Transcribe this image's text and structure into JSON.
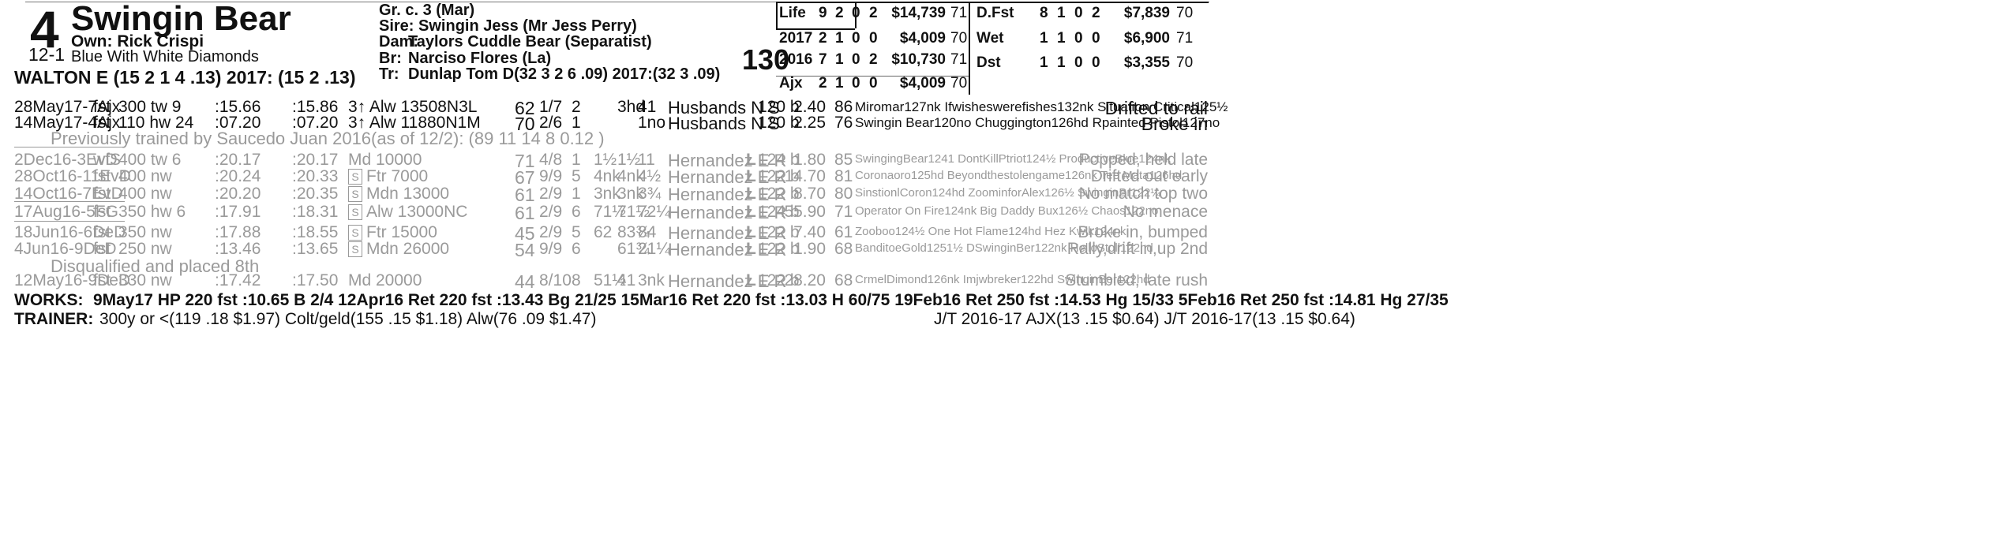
{
  "horse": {
    "program_number": "4",
    "name": "Swingin Bear",
    "odds": "12-1",
    "owner": "Own: Rick Crispi",
    "silks": "Blue With White Diamonds",
    "jockey_line": "WALTON E (15 2 1 4 .13) 2017: (15 2 .13)"
  },
  "pedigree": {
    "sex_age": "Gr. c. 3 (Mar)",
    "sire": "Sire: Swingin Jess (Mr Jess Perry)",
    "dam_label": "Dam:",
    "dam": "Taylors Cuddle Bear (Separatist)",
    "br_label": "Br:",
    "breeder": "Narciso Flores (La)",
    "tr_label": "Tr:",
    "trainer": "Dunlap Tom D(32 3 2 6 .09)  2017:(32 3 .09)"
  },
  "weight": "130",
  "record_left": [
    {
      "label": "Life",
      "st": "9",
      "w": "2",
      "p": "0",
      "s": "2",
      "earn": "$14,739",
      "speed": "71"
    },
    {
      "label": "2017",
      "st": "2",
      "w": "1",
      "p": "0",
      "s": "0",
      "earn": "$4,009",
      "speed": "70"
    },
    {
      "label": "2016",
      "st": "7",
      "w": "1",
      "p": "0",
      "s": "2",
      "earn": "$10,730",
      "speed": "71"
    },
    {
      "label": "Ajx",
      "st": "2",
      "w": "1",
      "p": "0",
      "s": "0",
      "earn": "$4,009",
      "speed": "70"
    }
  ],
  "record_right": [
    {
      "label": "D.Fst",
      "st": "8",
      "w": "1",
      "p": "0",
      "s": "2",
      "earn": "$7,839",
      "speed": "70"
    },
    {
      "label": "Wet",
      "st": "1",
      "w": "1",
      "p": "0",
      "s": "0",
      "earn": "$6,900",
      "speed": "71"
    },
    {
      "label": "Dst",
      "st": "1",
      "w": "1",
      "p": "0",
      "s": "0",
      "earn": "$3,355",
      "speed": "70"
    }
  ],
  "races_current": [
    {
      "date": "28May17-7Ajx",
      "cond": "fst",
      "dist": "300 tw 9",
      "t1": ":15.66",
      "t2": ":15.86",
      "race": "3↑ Alw 13508N3L",
      "spd": "62",
      "pp": "1/7",
      "st": "2",
      "c1": "",
      "c2": "3hd",
      "fin": "41",
      "jockey": "Husbands N S",
      "wt": "120 b",
      "odds": "2.40",
      "sr": "86",
      "top": "Miromar127nk Ifwisheswerefishes132nk Situation Critical125½",
      "comment": "Drifted to rail"
    },
    {
      "date": "14May17-4Ajx",
      "cond": "fst",
      "dist": "110 hw 24",
      "t1": ":07.20",
      "t2": ":07.20",
      "race": "3↑ Alw 11880N1M",
      "spd": "70",
      "pp": "2/6",
      "st": "1",
      "c1": "",
      "c2": "",
      "fin": "1no",
      "jockey": "Husbands N S",
      "wt": "120 b",
      "odds": "2.25",
      "sr": "76",
      "top": "Swingin Bear120no Chuggington126hd Rpainted Pistol127no",
      "comment": "Broke in"
    }
  ],
  "previous_trainer_note": "Previously trained by Saucedo Juan 2016(as of 12/2): (89 11 14 8 0.12 )",
  "races_previous": [
    {
      "date": "2Dec16-3EvD",
      "cond": "wfS",
      "dist": "400 tw 6",
      "t1": ":20.17",
      "t2": ":20.17",
      "s": "",
      "race": "Md 10000",
      "spd": "71",
      "pp": "4/8",
      "st": "1",
      "c1": "1½",
      "c2": "1½",
      "fin": "11",
      "jockey": "Hernandez E R",
      "med": "L",
      "wt": "124 b",
      "odds": "1.80",
      "sr": "85",
      "top": "SwingingBear1241 DontKillPtriot124½ ProductiveBlue124nk",
      "comment": "Popped, held late"
    },
    {
      "date": "28Oct16-11EvD",
      "cond": "fst",
      "dist": "400 nw",
      "t1": ":20.24",
      "t2": ":20.33",
      "s": "S",
      "race": "Ftr 7000",
      "spd": "67",
      "pp": "9/9",
      "st": "5",
      "c1": "4nk",
      "c2": "4nk",
      "fin": "4½",
      "jockey": "Hernandez E R",
      "med": "L",
      "wt": "122 b",
      "odds": "14.70",
      "sr": "81",
      "top": "Coronaoro125hd Beyondthestolengame126nk Tee Mata126hd",
      "comment": "Drifted out early"
    },
    {
      "date": "14Oct16-7EvD",
      "cond": "fst",
      "dist": "400 nw",
      "t1": ":20.20",
      "t2": ":20.35",
      "s": "S",
      "race": "Mdn 13000",
      "spd": "61",
      "pp": "2/9",
      "st": "1",
      "c1": "3nk",
      "c2": "3nk",
      "fin": "3¾",
      "jockey": "Hernandez E R",
      "med": "L",
      "wt": "122 b",
      "odds": "8.70",
      "sr": "80",
      "top": "SinstionlCoron124hd ZoominforAlex126½ SwinginBr122¼",
      "comment": "No match top two"
    },
    {
      "date": "17Aug16-5FG",
      "cond": "fst",
      "dist": "350 hw 6",
      "t1": ":17.91",
      "t2": ":18.31",
      "s": "S",
      "race": "Alw 13000NC",
      "spd": "61",
      "pp": "2/9",
      "st": "6",
      "c1": "71½",
      "c2": "71½",
      "fin": "72¼",
      "jockey": "Hernandez E R",
      "med": "L",
      "wt": "124 b",
      "odds": "55.90",
      "sr": "71",
      "top": "Operator On Fire124nk Big Daddy Bux126½ Chaos122no",
      "comment": "No menace"
    },
    {
      "date": "18Jun16-6DeD",
      "cond": "fst",
      "dist": "350 nw",
      "t1": ":17.88",
      "t2": ":18.55",
      "s": "S",
      "race": "Ftr 15000",
      "spd": "45",
      "pp": "2/9",
      "st": "5",
      "c1": "62",
      "c2": "83¾",
      "fin": "84",
      "jockey": "Hernandez E R",
      "med": "L",
      "wt": "122 b",
      "odds": "7.40",
      "sr": "61",
      "top": "Zooboo124½ One Hot Flame124hd Hez Kwik124nk",
      "comment": "Broke in, bumped"
    },
    {
      "date": "4Jun16-9DeD",
      "cond": "fst",
      "dist": "250 nw",
      "t1": ":13.46",
      "t2": ":13.65",
      "s": "S",
      "race": "Mdn 26000",
      "spd": "54",
      "pp": "9/9",
      "st": "6",
      "c1": "",
      "c2": "61¾",
      "fin": "21¼",
      "jockey": "Hernandez E R",
      "med": "L",
      "wt": "122 b",
      "odds": "1.90",
      "sr": "68",
      "top": "BanditoeGold1251½ DSwinginBer122nk HelloStoll122hd",
      "comment": "Rally,drift in,up 2nd"
    },
    {
      "date": "12May16-9DeD",
      "cond": "fst",
      "dist": "330 nw",
      "t1": ":17.42",
      "t2": ":17.50",
      "s": "",
      "race": "Md 20000",
      "spd": "44",
      "pp": "8/10",
      "st": "8",
      "c1": "51½",
      "c2": "41",
      "fin": "3nk",
      "jockey": "Hernandez E R",
      "med": "L",
      "wt": "122 b",
      "odds": "28.20",
      "sr": "68",
      "top": "CrmelDimond126nk Imjwbreker122hd SwinginBer122hd",
      "comment": "Stumbled, late rush"
    }
  ],
  "dq_note": "Disqualified and placed 8th",
  "works_label": "WORKS:",
  "works": "9May17 HP 220 fst :10.65 B 2/4   12Apr16 Ret 220 fst :13.43 Bg 21/25   15Mar16 Ret 220 fst :13.03 H 60/75   19Feb16 Ret 250 fst :14.53 Hg 15/33   5Feb16 Ret 250 fst :14.81 Hg 27/35",
  "trainer_label": "TRAINER:",
  "trainer_stats": "300y or <(119 .18 $1.97) Colt/geld(155 .15 $1.18) Alw(76 .09 $1.47)",
  "jt_stats": "J/T 2016-17 AJX(13 .15 $0.64)  J/T 2016-17(13 .15 $0.64)"
}
